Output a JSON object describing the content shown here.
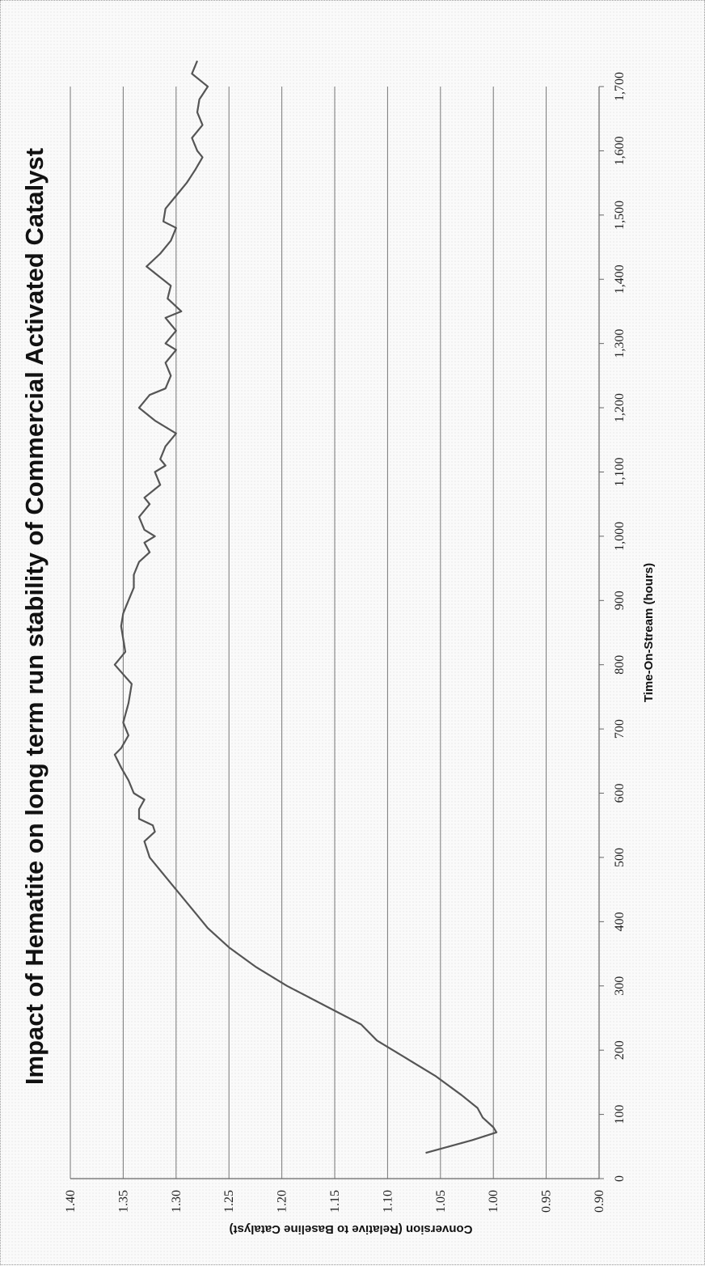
{
  "chart_data": {
    "type": "line",
    "title": "Impact of Hematite on long term run stability of Commercial Activated Catalyst",
    "xlabel": "Time-On-Stream (hours)",
    "ylabel": "Conversion (Relative to Baseline Catalyst)",
    "xlim": [
      0,
      1700
    ],
    "ylim": [
      0.9,
      1.4
    ],
    "x_ticks": [
      "0",
      "100",
      "200",
      "300",
      "400",
      "500",
      "600",
      "700",
      "800",
      "900",
      "1,000",
      "1,100",
      "1,200",
      "1,300",
      "1,400",
      "1,500",
      "1,600",
      "1,700"
    ],
    "y_ticks": [
      "0.90",
      "0.95",
      "1.00",
      "1.05",
      "1.10",
      "1.15",
      "1.20",
      "1.25",
      "1.30",
      "1.35",
      "1.40"
    ],
    "grid": "horizontal",
    "orientation": "rotated 90° counter-clockwise",
    "line_color": "#555555",
    "series": [
      {
        "x": [
          40,
          60,
          72,
          80,
          95,
          110,
          130,
          160,
          190,
          215,
          240,
          270,
          300,
          330,
          360,
          390,
          410,
          440,
          470,
          500,
          525,
          540,
          550,
          560,
          575,
          590,
          600,
          620,
          640,
          660,
          670,
          690,
          710,
          740,
          770,
          800,
          820,
          840,
          860,
          880,
          900,
          920,
          940,
          960,
          975,
          990,
          1000,
          1010,
          1030,
          1050,
          1060,
          1080,
          1100,
          1110,
          1120,
          1140,
          1160,
          1180,
          1200,
          1220,
          1230,
          1250,
          1270,
          1290,
          1300,
          1320,
          1340,
          1350,
          1370,
          1390,
          1420,
          1440,
          1460,
          1480,
          1490,
          1510,
          1530,
          1550,
          1570,
          1590,
          1600,
          1620,
          1640,
          1660,
          1680,
          1700,
          1720,
          1740
        ],
        "y": [
          1.064,
          1.02,
          0.997,
          1.0,
          1.01,
          1.015,
          1.03,
          1.055,
          1.085,
          1.11,
          1.125,
          1.16,
          1.195,
          1.225,
          1.25,
          1.27,
          1.28,
          1.295,
          1.31,
          1.325,
          1.33,
          1.32,
          1.322,
          1.335,
          1.335,
          1.33,
          1.34,
          1.345,
          1.352,
          1.358,
          1.352,
          1.345,
          1.35,
          1.345,
          1.342,
          1.358,
          1.348,
          1.35,
          1.352,
          1.35,
          1.345,
          1.34,
          1.34,
          1.335,
          1.325,
          1.33,
          1.32,
          1.33,
          1.335,
          1.325,
          1.33,
          1.315,
          1.32,
          1.31,
          1.315,
          1.31,
          1.3,
          1.32,
          1.335,
          1.325,
          1.31,
          1.305,
          1.31,
          1.3,
          1.31,
          1.3,
          1.31,
          1.295,
          1.308,
          1.305,
          1.328,
          1.315,
          1.305,
          1.3,
          1.312,
          1.31,
          1.3,
          1.29,
          1.282,
          1.275,
          1.28,
          1.285,
          1.275,
          1.28,
          1.278,
          1.27,
          1.285,
          1.28
        ]
      }
    ]
  }
}
